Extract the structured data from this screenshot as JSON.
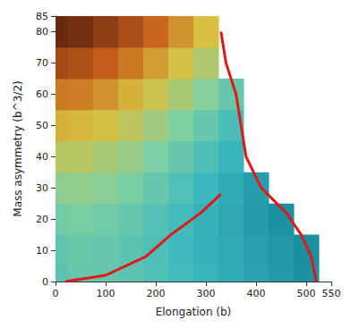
{
  "chart_data": {
    "type": "heatmap",
    "x_label": "Elongation (b)",
    "y_label": "Mass asymmetry (b^3/2)",
    "x": [
      0,
      50,
      100,
      150,
      200,
      250,
      300,
      350,
      400,
      450,
      500
    ],
    "y": [
      0,
      10,
      20,
      30,
      40,
      50,
      60,
      70,
      80
    ],
    "cells": [
      [
        2,
        6,
        5,
        3,
        0,
        -4,
        -8,
        -12,
        -16,
        -20,
        -24
      ],
      [
        4,
        7,
        6,
        3,
        -1,
        -5,
        -9,
        -13,
        -17,
        -21,
        -25
      ],
      [
        9,
        11,
        9,
        6,
        1,
        -4,
        -9,
        -14,
        -19,
        -24,
        null
      ],
      [
        16,
        17,
        15,
        11,
        6,
        0,
        -6,
        -12,
        -18,
        null,
        null
      ],
      [
        25,
        25,
        22,
        18,
        12,
        6,
        -1,
        -8,
        null,
        null,
        null
      ],
      [
        35,
        34,
        31,
        26,
        20,
        13,
        6,
        -2,
        null,
        null,
        null
      ],
      [
        46,
        45,
        41,
        35,
        29,
        22,
        14,
        6,
        null,
        null,
        null
      ],
      [
        58,
        56,
        52,
        46,
        39,
        31,
        23,
        null,
        null,
        null,
        null
      ],
      [
        70,
        68,
        63,
        57,
        50,
        41,
        32,
        null,
        null,
        null,
        null
      ]
    ],
    "xlim": [
      0,
      550
    ],
    "xticks": [
      0,
      100,
      200,
      300,
      400,
      500
    ],
    "ylim": [
      0,
      85
    ],
    "yticks": [
      0,
      10,
      20,
      30,
      40,
      50,
      60,
      70,
      80
    ],
    "grid": false,
    "series": [
      {
        "type": "line",
        "color": "#e01818",
        "line_style": "solid",
        "values": [
          [
            20,
            0
          ],
          [
            100,
            2
          ],
          [
            180,
            8
          ],
          [
            230,
            15
          ],
          [
            290,
            22
          ],
          [
            330,
            28
          ]
        ]
      },
      {
        "type": "line",
        "color": "#e01818",
        "line_style": "solid",
        "values": [
          [
            330,
            80
          ],
          [
            340,
            70
          ],
          [
            360,
            60
          ],
          [
            370,
            50
          ],
          [
            380,
            40
          ],
          [
            410,
            30
          ],
          [
            460,
            22
          ],
          [
            490,
            15
          ],
          [
            510,
            8
          ],
          [
            520,
            0
          ]
        ]
      }
    ]
  }
}
